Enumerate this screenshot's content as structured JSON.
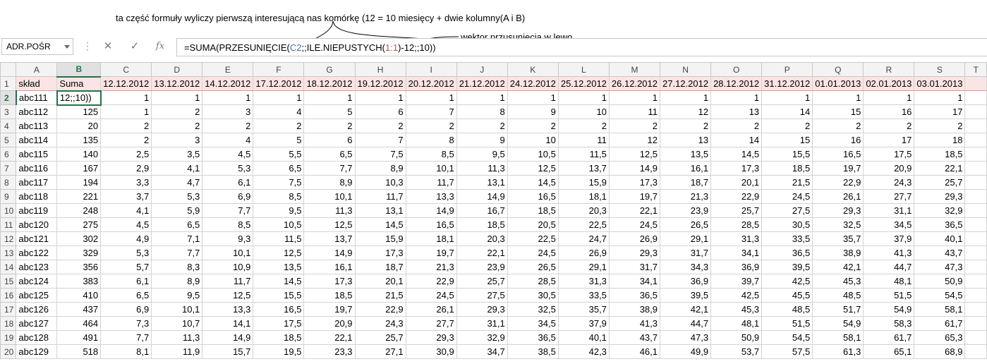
{
  "annotations": {
    "top_note": "ta część formuły wyliczy pierwszą interesującą nas komórkę (12 = 10 miesięcy + dwie kolumny(A i B)",
    "shift_note": "wektor przusunięcia w lewo"
  },
  "formula_bar": {
    "name_box": "ADR.POŚR",
    "cancel_icon": "✕",
    "enter_icon": "✓",
    "fx_label": "fx",
    "formula_parts": [
      "=SUMA(PRZESUNIĘCIE(",
      "C2",
      ";;ILE.NIEPUSTYCH(",
      "1:1",
      ")-12;;10))"
    ]
  },
  "columns": [
    "A",
    "B",
    "C",
    "D",
    "E",
    "F",
    "G",
    "H",
    "I",
    "J",
    "K",
    "L",
    "M",
    "N",
    "O",
    "P",
    "Q",
    "R",
    "S",
    "T"
  ],
  "header_row": [
    "skład",
    "Suma",
    "12.12.2012",
    "13.12.2012",
    "14.12.2012",
    "17.12.2012",
    "18.12.2012",
    "19.12.2012",
    "20.12.2012",
    "21.12.2012",
    "24.12.2012",
    "25.12.2012",
    "26.12.2012",
    "27.12.2012",
    "28.12.2012",
    "31.12.2012",
    "01.01.2013",
    "02.01.2013",
    "03.01.2013",
    ""
  ],
  "rows": [
    [
      "abc111",
      "12;;10))",
      "1",
      "1",
      "1",
      "1",
      "1",
      "1",
      "1",
      "1",
      "1",
      "1",
      "1",
      "1",
      "1",
      "1",
      "1",
      "1",
      "1"
    ],
    [
      "abc112",
      "125",
      "1",
      "2",
      "3",
      "4",
      "5",
      "6",
      "7",
      "8",
      "9",
      "10",
      "11",
      "12",
      "13",
      "14",
      "15",
      "16",
      "17"
    ],
    [
      "abc113",
      "20",
      "2",
      "2",
      "2",
      "2",
      "2",
      "2",
      "2",
      "2",
      "2",
      "2",
      "2",
      "2",
      "2",
      "2",
      "2",
      "2",
      "2"
    ],
    [
      "abc114",
      "135",
      "2",
      "3",
      "4",
      "5",
      "6",
      "7",
      "8",
      "9",
      "10",
      "11",
      "12",
      "13",
      "14",
      "15",
      "16",
      "17",
      "18"
    ],
    [
      "abc115",
      "140",
      "2,5",
      "3,5",
      "4,5",
      "5,5",
      "6,5",
      "7,5",
      "8,5",
      "9,5",
      "10,5",
      "11,5",
      "12,5",
      "13,5",
      "14,5",
      "15,5",
      "16,5",
      "17,5",
      "18,5"
    ],
    [
      "abc116",
      "167",
      "2,9",
      "4,1",
      "5,3",
      "6,5",
      "7,7",
      "8,9",
      "10,1",
      "11,3",
      "12,5",
      "13,7",
      "14,9",
      "16,1",
      "17,3",
      "18,5",
      "19,7",
      "20,9",
      "22,1"
    ],
    [
      "abc117",
      "194",
      "3,3",
      "4,7",
      "6,1",
      "7,5",
      "8,9",
      "10,3",
      "11,7",
      "13,1",
      "14,5",
      "15,9",
      "17,3",
      "18,7",
      "20,1",
      "21,5",
      "22,9",
      "24,3",
      "25,7"
    ],
    [
      "abc118",
      "221",
      "3,7",
      "5,3",
      "6,9",
      "8,5",
      "10,1",
      "11,7",
      "13,3",
      "14,9",
      "16,5",
      "18,1",
      "19,7",
      "21,3",
      "22,9",
      "24,5",
      "26,1",
      "27,7",
      "29,3"
    ],
    [
      "abc119",
      "248",
      "4,1",
      "5,9",
      "7,7",
      "9,5",
      "11,3",
      "13,1",
      "14,9",
      "16,7",
      "18,5",
      "20,3",
      "22,1",
      "23,9",
      "25,7",
      "27,5",
      "29,3",
      "31,1",
      "32,9"
    ],
    [
      "abc120",
      "275",
      "4,5",
      "6,5",
      "8,5",
      "10,5",
      "12,5",
      "14,5",
      "16,5",
      "18,5",
      "20,5",
      "22,5",
      "24,5",
      "26,5",
      "28,5",
      "30,5",
      "32,5",
      "34,5",
      "36,5"
    ],
    [
      "abc121",
      "302",
      "4,9",
      "7,1",
      "9,3",
      "11,5",
      "13,7",
      "15,9",
      "18,1",
      "20,3",
      "22,5",
      "24,7",
      "26,9",
      "29,1",
      "31,3",
      "33,5",
      "35,7",
      "37,9",
      "40,1"
    ],
    [
      "abc122",
      "329",
      "5,3",
      "7,7",
      "10,1",
      "12,5",
      "14,9",
      "17,3",
      "19,7",
      "22,1",
      "24,5",
      "26,9",
      "29,3",
      "31,7",
      "34,1",
      "36,5",
      "38,9",
      "41,3",
      "43,7"
    ],
    [
      "abc123",
      "356",
      "5,7",
      "8,3",
      "10,9",
      "13,5",
      "16,1",
      "18,7",
      "21,3",
      "23,9",
      "26,5",
      "29,1",
      "31,7",
      "34,3",
      "36,9",
      "39,5",
      "42,1",
      "44,7",
      "47,3"
    ],
    [
      "abc124",
      "383",
      "6,1",
      "8,9",
      "11,7",
      "14,5",
      "17,3",
      "20,1",
      "22,9",
      "25,7",
      "28,5",
      "31,3",
      "34,1",
      "36,9",
      "39,7",
      "42,5",
      "45,3",
      "48,1",
      "50,9"
    ],
    [
      "abc125",
      "410",
      "6,5",
      "9,5",
      "12,5",
      "15,5",
      "18,5",
      "21,5",
      "24,5",
      "27,5",
      "30,5",
      "33,5",
      "36,5",
      "39,5",
      "42,5",
      "45,5",
      "48,5",
      "51,5",
      "54,5"
    ],
    [
      "abc126",
      "437",
      "6,9",
      "10,1",
      "13,3",
      "16,5",
      "19,7",
      "22,9",
      "26,1",
      "29,3",
      "32,5",
      "35,7",
      "38,9",
      "42,1",
      "45,3",
      "48,5",
      "51,7",
      "54,9",
      "58,1"
    ],
    [
      "abc127",
      "464",
      "7,3",
      "10,7",
      "14,1",
      "17,5",
      "20,9",
      "24,3",
      "27,7",
      "31,1",
      "34,5",
      "37,9",
      "41,3",
      "44,7",
      "48,1",
      "51,5",
      "54,9",
      "58,3",
      "61,7"
    ],
    [
      "abc128",
      "491",
      "7,7",
      "11,3",
      "14,9",
      "18,5",
      "22,1",
      "25,7",
      "29,3",
      "32,9",
      "36,5",
      "40,1",
      "43,7",
      "47,3",
      "50,9",
      "54,5",
      "58,1",
      "61,7",
      "65,3"
    ],
    [
      "abc129",
      "518",
      "8,1",
      "11,9",
      "15,7",
      "19,5",
      "23,3",
      "27,1",
      "30,9",
      "34,7",
      "38,5",
      "42,3",
      "46,1",
      "49,9",
      "53,7",
      "57,5",
      "61,3",
      "65,1",
      "68,9"
    ]
  ]
}
